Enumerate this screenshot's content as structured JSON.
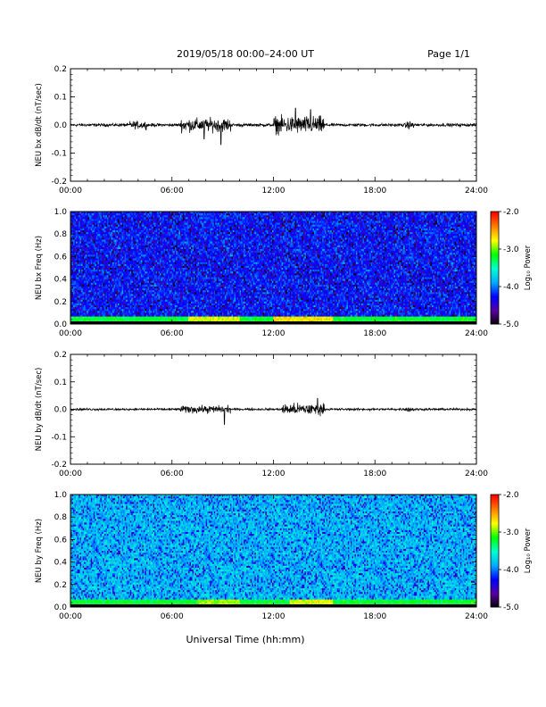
{
  "header": {
    "title": "2019/05/18  00:00–24:00 UT",
    "page": "Page 1/1"
  },
  "xlabel": "Universal Time (hh:mm)",
  "chart_data": [
    {
      "type": "line",
      "title": "",
      "ylabel": "NEU bx dB/dt (nT/sec)",
      "xlim": [
        0,
        24
      ],
      "ylim": [
        -0.2,
        0.2
      ],
      "yticks": [
        "0.2",
        "0.1",
        "0.0",
        "-0.1",
        "-0.2"
      ],
      "xticks": [
        "00:00",
        "06:00",
        "12:00",
        "18:00",
        "24:00"
      ],
      "baseline_amplitude": 0.008,
      "bursts": [
        {
          "start": 3.5,
          "end": 4.5,
          "amplitude": 0.02
        },
        {
          "start": 6.5,
          "end": 9.5,
          "amplitude": 0.035
        },
        {
          "start": 12.0,
          "end": 15.0,
          "amplitude": 0.045
        },
        {
          "start": 19.8,
          "end": 20.3,
          "amplitude": 0.02
        }
      ],
      "spikes": [
        {
          "t": 8.9,
          "min": -0.07
        },
        {
          "t": 7.9,
          "min": -0.05
        },
        {
          "t": 13.3,
          "max": 0.06
        },
        {
          "t": 14.2,
          "max": 0.055
        }
      ],
      "series_color": "#000000"
    },
    {
      "type": "heatmap",
      "title": "",
      "ylabel": "NEU bx Freq (Hz)",
      "xlim": [
        0,
        24
      ],
      "ylim": [
        0.0,
        1.0
      ],
      "yticks": [
        "1.0",
        "0.8",
        "0.6",
        "0.4",
        "0.2",
        "0.0"
      ],
      "xticks": [
        "00:00",
        "06:00",
        "12:00",
        "18:00",
        "24:00"
      ],
      "colorbar": {
        "label": "Log₁₀ Power",
        "range": [
          -5.0,
          -2.0
        ],
        "ticks": [
          "-2.0",
          "-3.0",
          "-4.0",
          "-5.0"
        ],
        "colors": [
          "#000000",
          "#5a00a0",
          "#0000ff",
          "#00aaff",
          "#00ffd0",
          "#00ff00",
          "#ffff00",
          "#ff8000",
          "#ff0000"
        ]
      },
      "background_level": -4.2,
      "low_freq_enhancement": [
        {
          "start": 7.0,
          "end": 10.0,
          "level": -2.8
        },
        {
          "start": 12.0,
          "end": 15.5,
          "level": -2.7
        }
      ]
    },
    {
      "type": "line",
      "title": "",
      "ylabel": "NEU by dB/dt (nT/sec)",
      "xlim": [
        0,
        24
      ],
      "ylim": [
        -0.2,
        0.2
      ],
      "yticks": [
        "0.2",
        "0.1",
        "0.0",
        "-0.1",
        "-0.2"
      ],
      "xticks": [
        "00:00",
        "06:00",
        "12:00",
        "18:00",
        "24:00"
      ],
      "baseline_amplitude": 0.006,
      "bursts": [
        {
          "start": 6.5,
          "end": 9.5,
          "amplitude": 0.02
        },
        {
          "start": 12.5,
          "end": 15.0,
          "amplitude": 0.03
        },
        {
          "start": 19.8,
          "end": 20.3,
          "amplitude": 0.015
        }
      ],
      "spikes": [
        {
          "t": 9.1,
          "min": -0.055
        },
        {
          "t": 14.6,
          "max": 0.04
        }
      ],
      "series_color": "#000000"
    },
    {
      "type": "heatmap",
      "title": "",
      "ylabel": "NEU by Freq (Hz)",
      "xlim": [
        0,
        24
      ],
      "ylim": [
        0.0,
        1.0
      ],
      "yticks": [
        "1.0",
        "0.8",
        "0.6",
        "0.4",
        "0.2",
        "0.0"
      ],
      "xticks": [
        "00:00",
        "06:00",
        "12:00",
        "18:00",
        "24:00"
      ],
      "colorbar": {
        "label": "Log₁₀ Power",
        "range": [
          -5.0,
          -2.0
        ],
        "ticks": [
          "-2.0",
          "-3.0",
          "-4.0",
          "-5.0"
        ],
        "colors": [
          "#000000",
          "#5a00a0",
          "#0000ff",
          "#00aaff",
          "#00ffd0",
          "#00ff00",
          "#ffff00",
          "#ff8000",
          "#ff0000"
        ]
      },
      "background_level": -3.8,
      "low_freq_enhancement": [
        {
          "start": 7.5,
          "end": 10.0,
          "level": -2.9
        },
        {
          "start": 13.0,
          "end": 15.5,
          "level": -2.8
        }
      ]
    }
  ]
}
